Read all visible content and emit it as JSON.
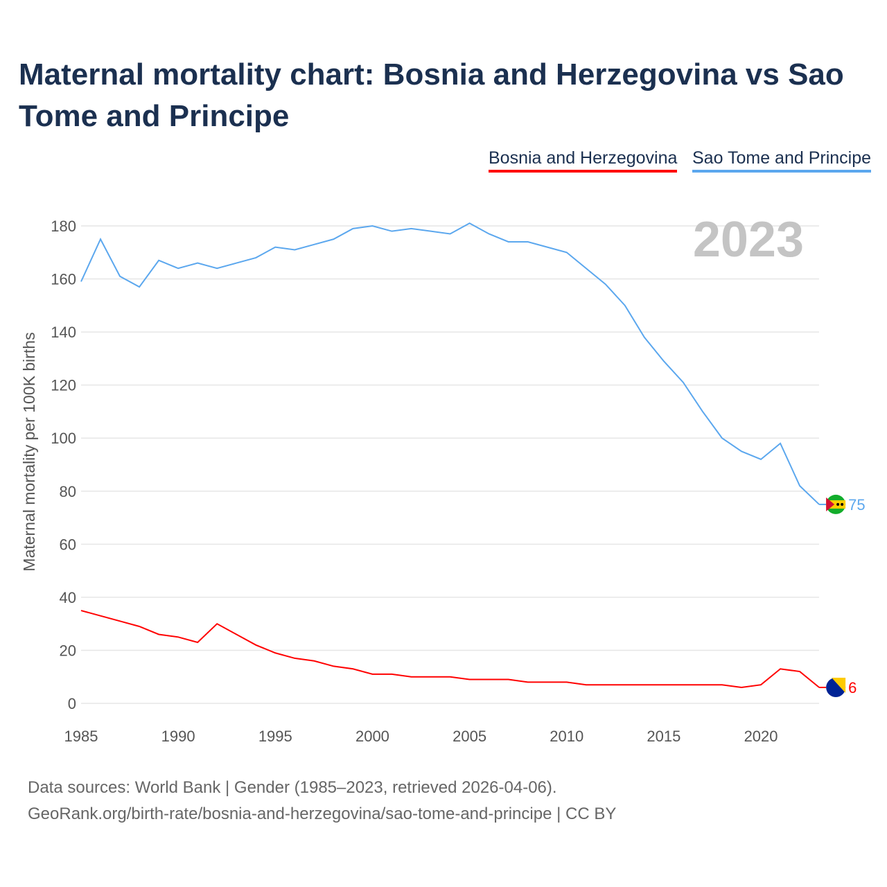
{
  "chart_data": {
    "type": "line",
    "title": "Maternal mortality chart: Bosnia and Herzegovina vs Sao Tome and Principe",
    "xlabel": "",
    "ylabel": "Maternal mortality per 100K births",
    "year_label": "2023",
    "xlim": [
      1985,
      2023
    ],
    "ylim": [
      0,
      180
    ],
    "x_ticks": [
      "1985",
      "1990",
      "1995",
      "2000",
      "2005",
      "2010",
      "2015",
      "2020"
    ],
    "y_ticks": [
      "0",
      "20",
      "40",
      "60",
      "80",
      "100",
      "120",
      "140",
      "160",
      "180"
    ],
    "grid": true,
    "legend_position": "top-right",
    "x": [
      1985,
      1986,
      1987,
      1988,
      1989,
      1990,
      1991,
      1992,
      1993,
      1994,
      1995,
      1996,
      1997,
      1998,
      1999,
      2000,
      2001,
      2002,
      2003,
      2004,
      2005,
      2006,
      2007,
      2008,
      2009,
      2010,
      2011,
      2012,
      2013,
      2014,
      2015,
      2016,
      2017,
      2018,
      2019,
      2020,
      2021,
      2022,
      2023
    ],
    "series": [
      {
        "name": "Bosnia and Herzegovina",
        "color": "#ff0000",
        "end_label": "6",
        "values": [
          35,
          33,
          31,
          29,
          26,
          25,
          23,
          30,
          26,
          22,
          19,
          17,
          16,
          14,
          13,
          11,
          11,
          10,
          10,
          10,
          9,
          9,
          9,
          8,
          8,
          8,
          7,
          7,
          7,
          7,
          7,
          7,
          7,
          7,
          6,
          7,
          13,
          12,
          6
        ]
      },
      {
        "name": "Sao Tome and Principe",
        "color": "#5ba7ee",
        "end_label": "75",
        "values": [
          159,
          175,
          161,
          157,
          167,
          164,
          166,
          164,
          166,
          168,
          172,
          171,
          173,
          175,
          179,
          180,
          178,
          179,
          178,
          177,
          181,
          177,
          174,
          174,
          172,
          170,
          164,
          158,
          150,
          138,
          129,
          121,
          110,
          100,
          95,
          92,
          98,
          82,
          75
        ]
      }
    ]
  },
  "source": {
    "line1": "Data sources: World Bank | Gender (1985–2023, retrieved 2026-04-06).",
    "line2": "GeoRank.org/birth-rate/bosnia-and-herzegovina/sao-tome-and-principe | CC BY"
  }
}
